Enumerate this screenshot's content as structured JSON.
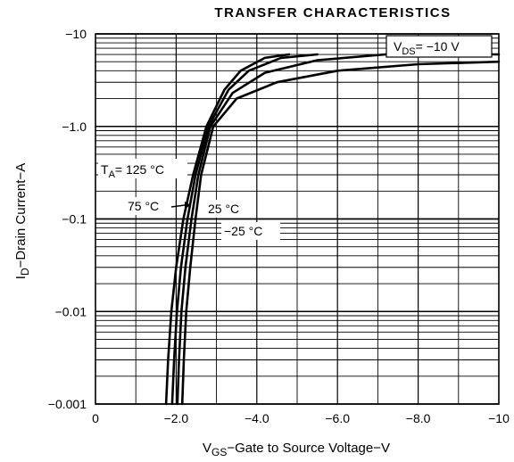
{
  "chart_data": {
    "type": "line",
    "title": "TRANSFER CHARACTERISTICS",
    "xlabel": {
      "main": "V",
      "sub": "GS",
      "rest": "−Gate to Source Voltage−V"
    },
    "ylabel": {
      "main": "I",
      "sub": "D",
      "rest": "−Drain Current−A"
    },
    "xlim": [
      0,
      -10
    ],
    "ylim": [
      -0.001,
      -10
    ],
    "yscale": "log",
    "grid": true,
    "x_ticks": [
      {
        "value": 0,
        "label": "0"
      },
      {
        "value": -2,
        "label": "−2.0"
      },
      {
        "value": -4,
        "label": "−4.0"
      },
      {
        "value": -6,
        "label": "−6.0"
      },
      {
        "value": -8,
        "label": "−8.0"
      },
      {
        "value": -10,
        "label": "−10"
      }
    ],
    "y_ticks": [
      {
        "value": -10,
        "label": "−10"
      },
      {
        "value": -1,
        "label": "−1.0"
      },
      {
        "value": -0.1,
        "label": "−0.1"
      },
      {
        "value": -0.01,
        "label": "−0.01"
      },
      {
        "value": -0.001,
        "label": "−0.001"
      }
    ],
    "condition": {
      "main": "V",
      "sub": "DS",
      "rest": "= −10 V"
    },
    "annotations": [
      {
        "main": "T",
        "sub": "A",
        "rest": "= 125 °C"
      },
      {
        "main": "75 °C",
        "sub": "",
        "rest": ""
      },
      {
        "main": "25 °C",
        "sub": "",
        "rest": ""
      },
      {
        "main": "−25 °C",
        "sub": "",
        "rest": ""
      }
    ],
    "series": [
      {
        "name": "T_A = 125 °C",
        "points": [
          [
            -1.75,
            -0.001
          ],
          [
            -1.8,
            -0.003
          ],
          [
            -1.88,
            -0.01
          ],
          [
            -2.0,
            -0.03
          ],
          [
            -2.18,
            -0.1
          ],
          [
            -2.42,
            -0.3
          ],
          [
            -2.75,
            -1.0
          ],
          [
            -3.2,
            -2.5
          ],
          [
            -3.6,
            -4.0
          ],
          [
            -4.2,
            -5.5
          ],
          [
            -4.8,
            -6.0
          ]
        ]
      },
      {
        "name": "75 °C",
        "points": [
          [
            -1.9,
            -0.001
          ],
          [
            -1.95,
            -0.003
          ],
          [
            -2.02,
            -0.01
          ],
          [
            -2.12,
            -0.03
          ],
          [
            -2.28,
            -0.1
          ],
          [
            -2.48,
            -0.3
          ],
          [
            -2.8,
            -1.0
          ],
          [
            -3.3,
            -2.5
          ],
          [
            -3.8,
            -4.0
          ],
          [
            -4.6,
            -5.5
          ],
          [
            -5.5,
            -6.0
          ]
        ]
      },
      {
        "name": "25 °C",
        "points": [
          [
            -2.03,
            -0.001
          ],
          [
            -2.07,
            -0.003
          ],
          [
            -2.13,
            -0.01
          ],
          [
            -2.23,
            -0.03
          ],
          [
            -2.38,
            -0.1
          ],
          [
            -2.55,
            -0.3
          ],
          [
            -2.85,
            -1.0
          ],
          [
            -3.4,
            -2.3
          ],
          [
            -4.2,
            -3.8
          ],
          [
            -5.5,
            -5.2
          ],
          [
            -7.2,
            -6.0
          ],
          [
            -10.0,
            -6.0
          ]
        ]
      },
      {
        "name": "−25 °C",
        "points": [
          [
            -2.15,
            -0.001
          ],
          [
            -2.19,
            -0.003
          ],
          [
            -2.25,
            -0.01
          ],
          [
            -2.35,
            -0.03
          ],
          [
            -2.48,
            -0.1
          ],
          [
            -2.62,
            -0.3
          ],
          [
            -2.92,
            -1.0
          ],
          [
            -3.5,
            -2.0
          ],
          [
            -4.5,
            -3.0
          ],
          [
            -6.0,
            -4.0
          ],
          [
            -8.0,
            -4.7
          ],
          [
            -10.0,
            -5.0
          ]
        ]
      }
    ]
  }
}
